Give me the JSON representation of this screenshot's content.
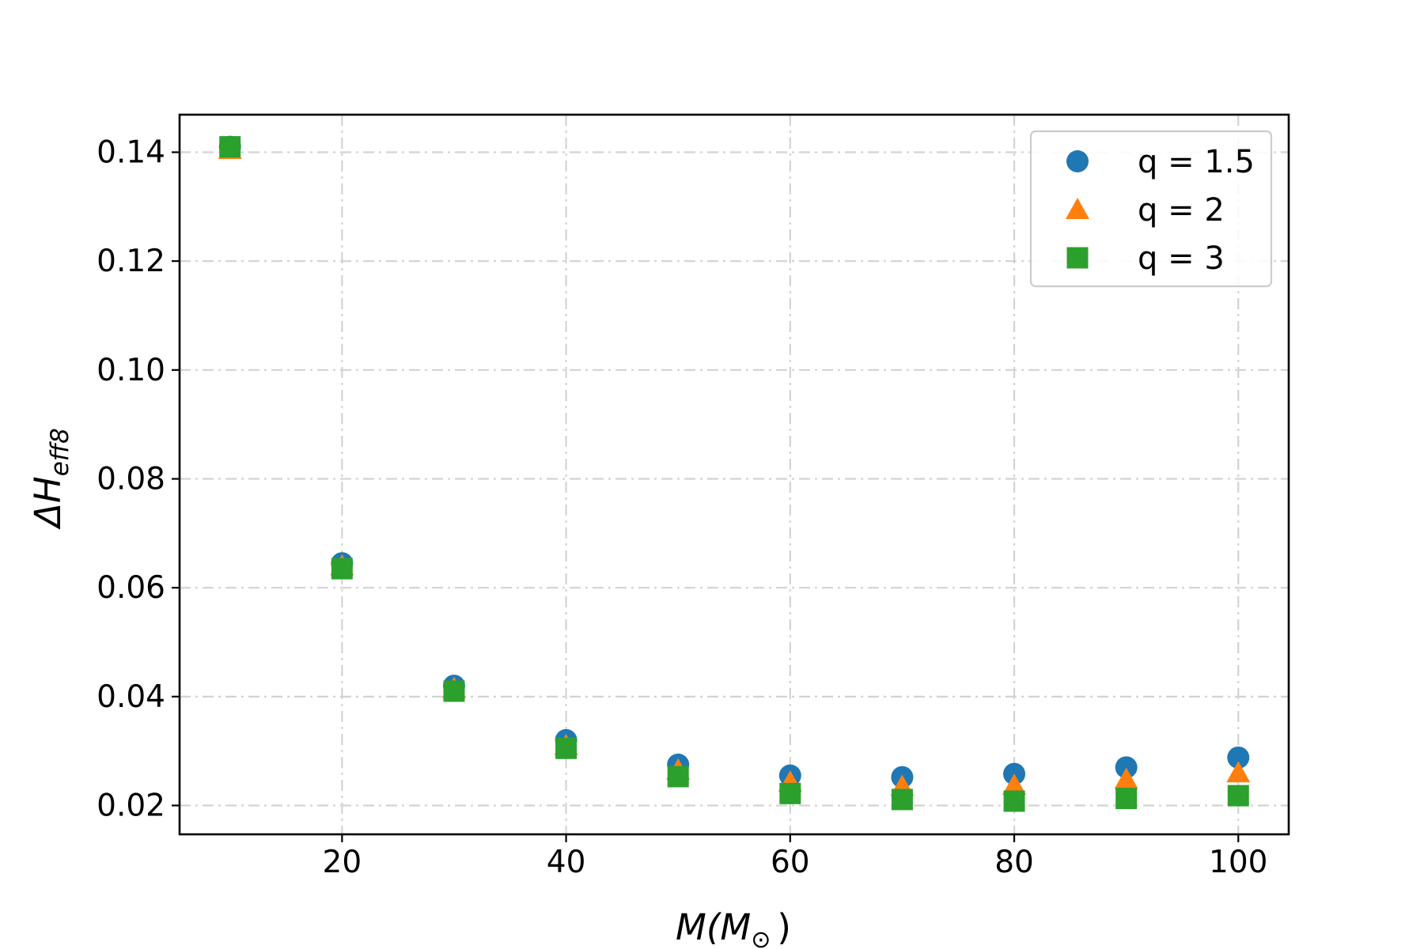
{
  "chart_data": {
    "type": "scatter",
    "title": "",
    "xlabel": {
      "main": "M(M",
      "sub": "⊙",
      "close": ")"
    },
    "ylabel": {
      "main": "ΔH",
      "sub": "eff8"
    },
    "xlim": [
      5.5,
      104.5
    ],
    "ylim": [
      0.0147,
      0.1469
    ],
    "xticks": [
      20,
      40,
      60,
      80,
      100
    ],
    "yticks": [
      0.02,
      0.04,
      0.06,
      0.08,
      0.1,
      0.12,
      0.14
    ],
    "xtick_labels": [
      "20",
      "40",
      "60",
      "80",
      "100"
    ],
    "ytick_labels": [
      "0.02",
      "0.04",
      "0.06",
      "0.08",
      "0.10",
      "0.12",
      "0.14"
    ],
    "grid": true,
    "legend_position": "top-right",
    "x": [
      10,
      20,
      30,
      40,
      50,
      60,
      70,
      80,
      90,
      100
    ],
    "series": [
      {
        "name": "q = 1.5",
        "marker": "circle",
        "color": "#1f77b4",
        "values": [
          0.141,
          0.0645,
          0.042,
          0.032,
          0.0275,
          0.0255,
          0.0252,
          0.0258,
          0.027,
          0.0288
        ]
      },
      {
        "name": "q = 2",
        "marker": "triangle",
        "color": "#ff7f0e",
        "values": [
          0.1405,
          0.064,
          0.0415,
          0.031,
          0.0265,
          0.0243,
          0.0235,
          0.0237,
          0.0248,
          0.026
        ]
      },
      {
        "name": "q = 3",
        "marker": "square",
        "color": "#2ca02c",
        "values": [
          0.141,
          0.0635,
          0.041,
          0.0305,
          0.0253,
          0.0222,
          0.0211,
          0.0208,
          0.0213,
          0.0218
        ]
      }
    ]
  }
}
